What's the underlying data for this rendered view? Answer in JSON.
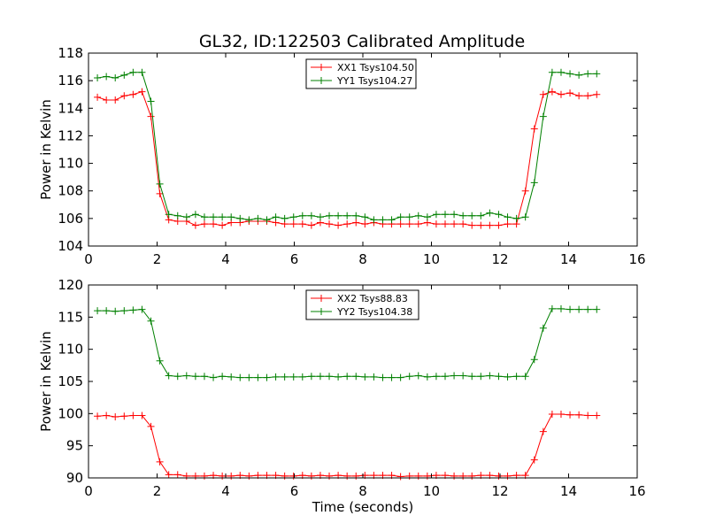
{
  "title": "GL32, ID:122503 Calibrated Amplitude",
  "chart_data": [
    {
      "type": "line",
      "title": "GL32, ID:122503 Calibrated Amplitude",
      "xlabel": "",
      "ylabel": "Power in Kelvin",
      "xlim": [
        0,
        16
      ],
      "ylim": [
        104,
        118
      ],
      "xticks": [
        0,
        2,
        4,
        6,
        8,
        10,
        12,
        14,
        16
      ],
      "yticks": [
        104,
        106,
        108,
        110,
        112,
        114,
        116,
        118
      ],
      "grid": false,
      "legend_position": "top-center",
      "marker": "+",
      "x": [
        0.26,
        0.52,
        0.78,
        1.04,
        1.3,
        1.56,
        1.82,
        2.08,
        2.34,
        2.6,
        2.86,
        3.12,
        3.38,
        3.64,
        3.9,
        4.16,
        4.42,
        4.68,
        4.94,
        5.2,
        5.46,
        5.72,
        5.98,
        6.24,
        6.5,
        6.76,
        7.02,
        7.28,
        7.54,
        7.8,
        8.06,
        8.32,
        8.58,
        8.84,
        9.1,
        9.36,
        9.62,
        9.88,
        10.14,
        10.4,
        10.66,
        10.92,
        11.18,
        11.44,
        11.7,
        11.96,
        12.22,
        12.48,
        12.74,
        13.0,
        13.26,
        13.52,
        13.78,
        14.04,
        14.3,
        14.56,
        14.82
      ],
      "series": [
        {
          "name": "XX1 Tsys104.50",
          "color": "#ff0000",
          "values": [
            114.8,
            114.6,
            114.6,
            114.9,
            115.0,
            115.2,
            113.4,
            107.8,
            105.9,
            105.8,
            105.8,
            105.5,
            105.6,
            105.6,
            105.5,
            105.7,
            105.7,
            105.8,
            105.8,
            105.8,
            105.7,
            105.6,
            105.6,
            105.6,
            105.5,
            105.7,
            105.6,
            105.5,
            105.6,
            105.7,
            105.6,
            105.7,
            105.6,
            105.6,
            105.6,
            105.6,
            105.6,
            105.7,
            105.6,
            105.6,
            105.6,
            105.6,
            105.5,
            105.5,
            105.5,
            105.5,
            105.6,
            105.6,
            108.0,
            112.5,
            115.0,
            115.2,
            115.0,
            115.1,
            114.9,
            114.9,
            115.0
          ]
        },
        {
          "name": "YY1 Tsys104.27",
          "color": "#008000",
          "values": [
            116.2,
            116.3,
            116.2,
            116.4,
            116.6,
            116.6,
            114.5,
            108.5,
            106.3,
            106.2,
            106.1,
            106.3,
            106.1,
            106.1,
            106.1,
            106.1,
            106.0,
            105.9,
            106.0,
            105.9,
            106.1,
            106.0,
            106.1,
            106.2,
            106.2,
            106.1,
            106.2,
            106.2,
            106.2,
            106.2,
            106.1,
            105.9,
            105.9,
            105.9,
            106.1,
            106.1,
            106.2,
            106.1,
            106.3,
            106.3,
            106.3,
            106.2,
            106.2,
            106.2,
            106.4,
            106.3,
            106.1,
            106.0,
            106.1,
            108.6,
            113.4,
            116.6,
            116.6,
            116.5,
            116.4,
            116.5,
            116.5
          ]
        }
      ]
    },
    {
      "type": "line",
      "title": "",
      "xlabel": "Time (seconds)",
      "ylabel": "Power in Kelvin",
      "xlim": [
        0,
        16
      ],
      "ylim": [
        90,
        120
      ],
      "xticks": [
        0,
        2,
        4,
        6,
        8,
        10,
        12,
        14,
        16
      ],
      "yticks": [
        90,
        95,
        100,
        105,
        110,
        115,
        120
      ],
      "grid": false,
      "legend_position": "top-center",
      "marker": "+",
      "x": [
        0.26,
        0.52,
        0.78,
        1.04,
        1.3,
        1.56,
        1.82,
        2.08,
        2.34,
        2.6,
        2.86,
        3.12,
        3.38,
        3.64,
        3.9,
        4.16,
        4.42,
        4.68,
        4.94,
        5.2,
        5.46,
        5.72,
        5.98,
        6.24,
        6.5,
        6.76,
        7.02,
        7.28,
        7.54,
        7.8,
        8.06,
        8.32,
        8.58,
        8.84,
        9.1,
        9.36,
        9.62,
        9.88,
        10.14,
        10.4,
        10.66,
        10.92,
        11.18,
        11.44,
        11.7,
        11.96,
        12.22,
        12.48,
        12.74,
        13.0,
        13.26,
        13.52,
        13.78,
        14.04,
        14.3,
        14.56,
        14.82
      ],
      "series": [
        {
          "name": "XX2 Tsys88.83",
          "color": "#ff0000",
          "values": [
            99.6,
            99.7,
            99.5,
            99.6,
            99.7,
            99.7,
            98.0,
            92.5,
            90.5,
            90.5,
            90.3,
            90.3,
            90.3,
            90.4,
            90.3,
            90.3,
            90.4,
            90.3,
            90.4,
            90.4,
            90.4,
            90.3,
            90.3,
            90.4,
            90.3,
            90.4,
            90.3,
            90.4,
            90.3,
            90.3,
            90.4,
            90.4,
            90.4,
            90.4,
            90.2,
            90.3,
            90.3,
            90.3,
            90.4,
            90.4,
            90.3,
            90.3,
            90.3,
            90.4,
            90.4,
            90.3,
            90.3,
            90.4,
            90.4,
            92.8,
            97.2,
            99.9,
            99.9,
            99.8,
            99.8,
            99.7,
            99.7
          ]
        },
        {
          "name": "YY2 Tsys104.38",
          "color": "#008000",
          "values": [
            116.0,
            116.0,
            115.9,
            116.0,
            116.1,
            116.2,
            114.4,
            108.2,
            105.9,
            105.8,
            105.9,
            105.8,
            105.8,
            105.6,
            105.8,
            105.7,
            105.6,
            105.6,
            105.6,
            105.6,
            105.7,
            105.7,
            105.7,
            105.7,
            105.8,
            105.8,
            105.8,
            105.7,
            105.8,
            105.8,
            105.7,
            105.7,
            105.6,
            105.6,
            105.6,
            105.8,
            105.9,
            105.7,
            105.8,
            105.8,
            105.9,
            105.9,
            105.8,
            105.8,
            105.9,
            105.8,
            105.7,
            105.8,
            105.8,
            108.4,
            113.3,
            116.3,
            116.3,
            116.2,
            116.2,
            116.2,
            116.2
          ]
        }
      ]
    }
  ]
}
